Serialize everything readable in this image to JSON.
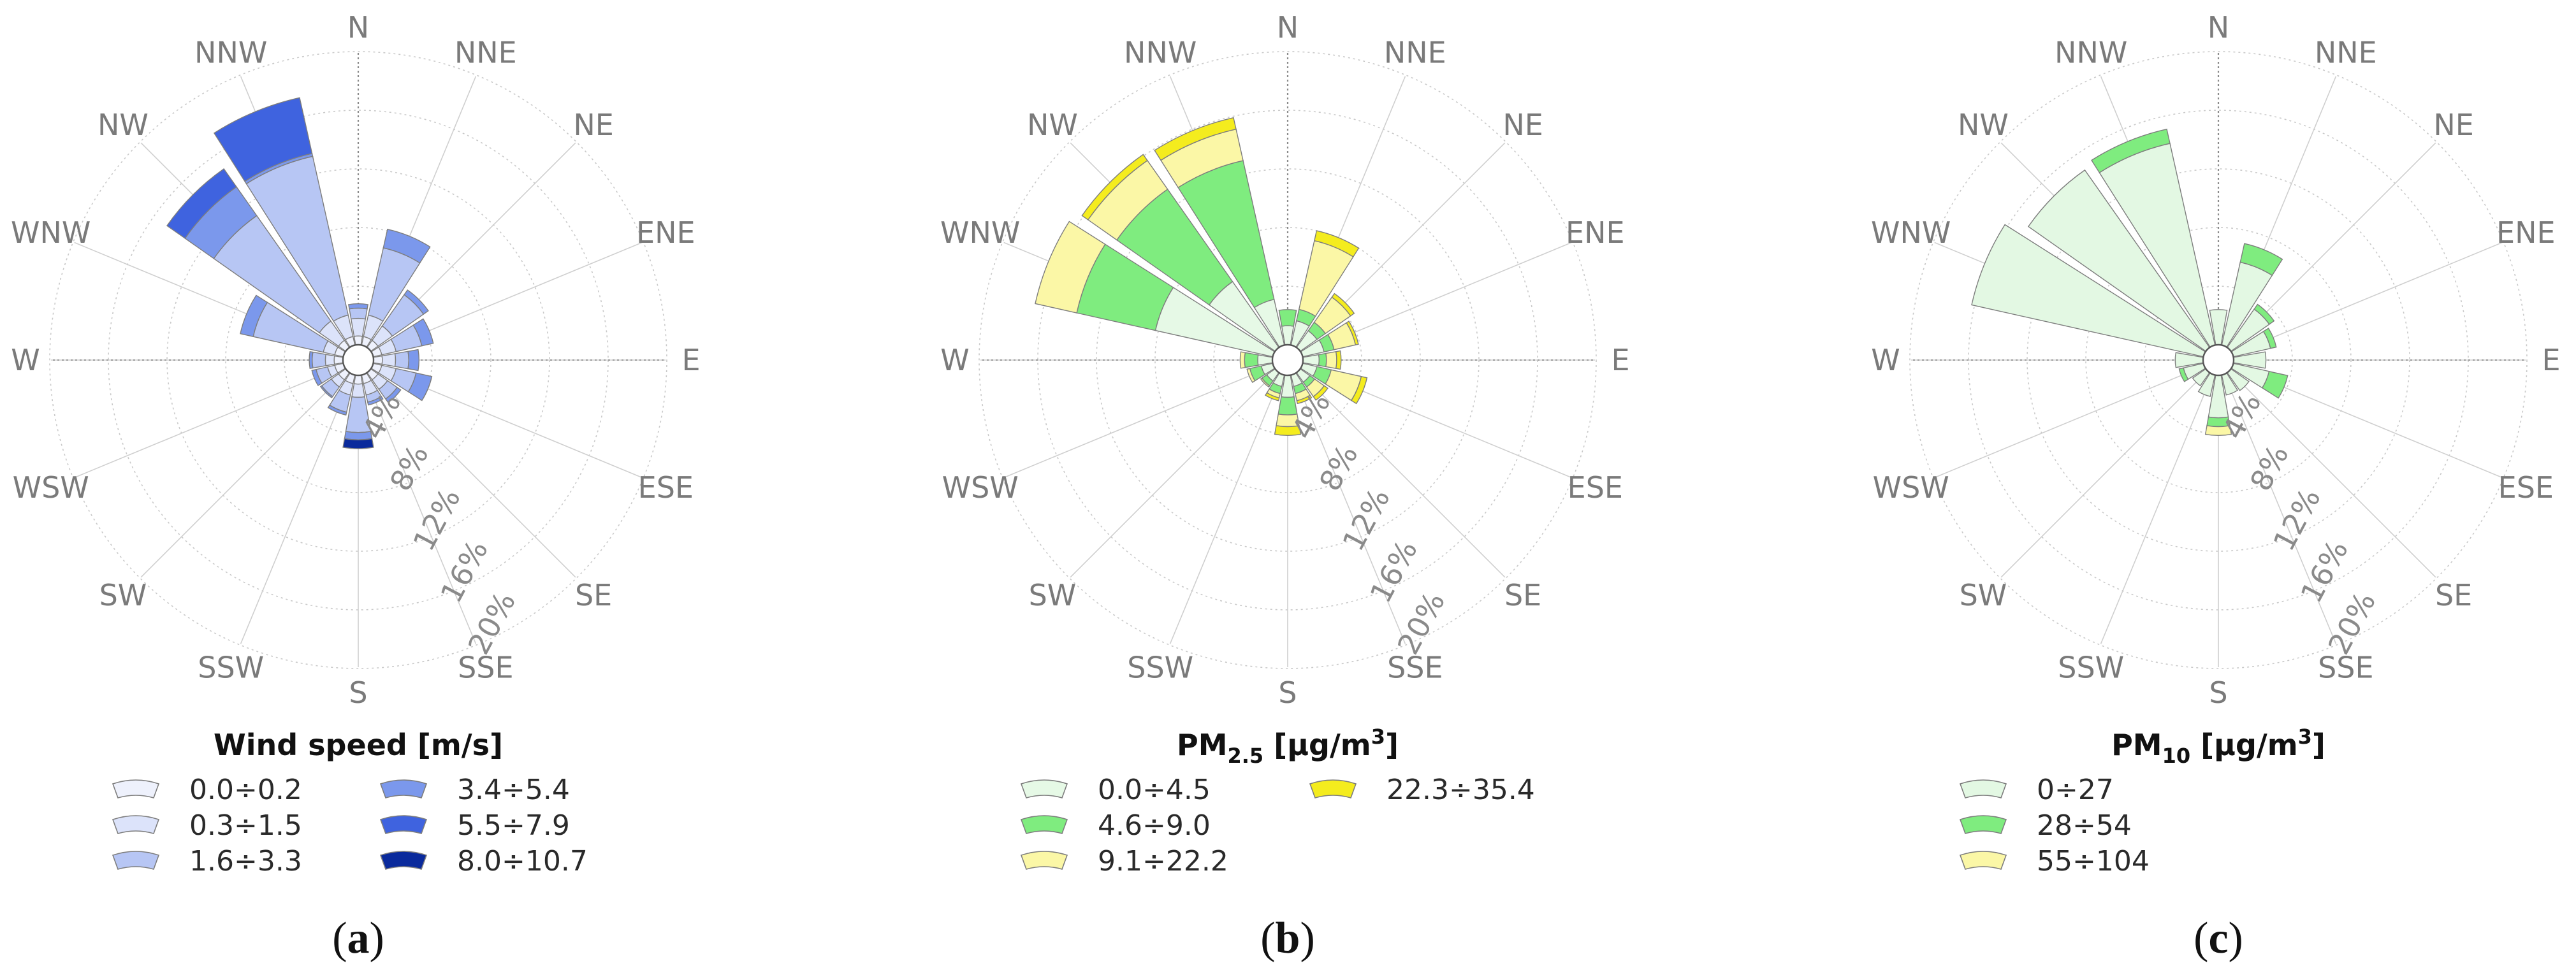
{
  "directions": [
    "N",
    "NNE",
    "NE",
    "ENE",
    "E",
    "ESE",
    "SE",
    "SSE",
    "S",
    "SSW",
    "SW",
    "WSW",
    "W",
    "WNW",
    "NW",
    "NNW"
  ],
  "ring_labels": [
    "4%",
    "8%",
    "12%",
    "16%",
    "20%"
  ],
  "chart_data": [
    {
      "type": "polar-bar (wind rose)",
      "panel": "(a)",
      "caption_letter": "a",
      "legend_title": "Wind speed [m/s]",
      "radial_unit": "% frequency",
      "rlim": [
        0,
        20
      ],
      "ring_ticks": [
        4,
        8,
        12,
        16,
        20
      ],
      "directions": [
        "N",
        "NNE",
        "NE",
        "ENE",
        "E",
        "ESE",
        "SE",
        "SSE",
        "S",
        "SSW",
        "SW",
        "WSW",
        "W",
        "WNW",
        "NW",
        "NNW"
      ],
      "series": [
        {
          "name": "0.0÷0.2",
          "color": "#eef1fc",
          "values": [
            0.6,
            0.6,
            0.6,
            0.6,
            0.6,
            0.6,
            0.6,
            0.6,
            0.6,
            0.6,
            0.6,
            0.6,
            0.6,
            0.6,
            0.6,
            0.6
          ]
        },
        {
          "name": "0.3÷1.5",
          "color": "#dce3fa",
          "values": [
            1.2,
            1.5,
            1.2,
            1.0,
            0.9,
            1.0,
            0.8,
            0.8,
            0.9,
            0.8,
            0.6,
            0.5,
            0.6,
            0.8,
            1.6,
            1.5
          ]
        },
        {
          "name": "1.6÷3.3",
          "color": "#b7c6f4",
          "values": [
            0.7,
            4.7,
            2.6,
            1.8,
            0.9,
            1.4,
            0.8,
            0.5,
            2.4,
            1.2,
            0.8,
            0.8,
            0.9,
            4.9,
            8.8,
            11.1
          ]
        },
        {
          "name": "3.4÷5.4",
          "color": "#7b98ec",
          "values": [
            0.3,
            1.3,
            0.4,
            0.8,
            0.7,
            1.1,
            0.3,
            0.2,
            0.5,
            0.2,
            0.1,
            0.3,
            0.2,
            0.9,
            2.4,
            0.2
          ]
        },
        {
          "name": "5.5÷7.9",
          "color": "#3f63df",
          "values": [
            0.0,
            0.0,
            0.0,
            0.0,
            0.0,
            0.0,
            0.0,
            0.0,
            0.0,
            0.0,
            0.0,
            0.0,
            0.0,
            0.0,
            1.5,
            3.9
          ]
        },
        {
          "name": "8.0÷10.7",
          "color": "#0a2a9c",
          "values": [
            0.0,
            0.0,
            0.0,
            0.0,
            0.0,
            0.0,
            0.0,
            0.0,
            0.6,
            0.0,
            0.0,
            0.0,
            0.0,
            0.0,
            0.0,
            0.0
          ]
        }
      ]
    },
    {
      "type": "polar-bar (wind rose)",
      "panel": "(b)",
      "caption_letter": "b",
      "legend_title": "PM",
      "legend_title_sub": "2.5",
      "legend_title_unit_pre": " [µg/m",
      "legend_title_unit_sup": "3",
      "legend_title_unit_post": "]",
      "radial_unit": "% frequency",
      "rlim": [
        0,
        20
      ],
      "ring_ticks": [
        4,
        8,
        12,
        16,
        20
      ],
      "directions": [
        "N",
        "NNE",
        "NE",
        "ENE",
        "E",
        "ESE",
        "SE",
        "SSE",
        "S",
        "SSW",
        "SW",
        "WSW",
        "W",
        "WNW",
        "NW",
        "NNW"
      ],
      "series": [
        {
          "name": "0.0÷4.5",
          "color": "#e6f9e6",
          "values": [
            1.3,
            1.7,
            1.4,
            1.5,
            1.1,
            1.0,
            0.8,
            0.8,
            1.5,
            0.8,
            0.7,
            0.8,
            1.0,
            8.2,
            5.5,
            3.2
          ]
        },
        {
          "name": "4.6÷9.0",
          "color": "#7fec7f",
          "values": [
            1.1,
            0.8,
            0.7,
            0.7,
            0.5,
            1.0,
            0.4,
            0.5,
            1.2,
            0.5,
            0.4,
            0.8,
            0.9,
            5.5,
            7.7,
            9.7
          ]
        },
        {
          "name": "9.1÷22.2",
          "color": "#fbf7a6",
          "values": [
            0.0,
            4.8,
            2.1,
            1.5,
            0.7,
            2.1,
            0.8,
            0.5,
            0.8,
            0.3,
            0.1,
            0.2,
            0.3,
            2.9,
            2.4,
            2.2
          ]
        },
        {
          "name": "22.3÷35.4",
          "color": "#f4ec1e",
          "values": [
            0.0,
            0.7,
            0.3,
            0.2,
            0.3,
            0.4,
            0.3,
            0.2,
            0.6,
            0.2,
            0.0,
            0.0,
            0.0,
            0.0,
            0.5,
            0.8
          ]
        }
      ]
    },
    {
      "type": "polar-bar (wind rose)",
      "panel": "(c)",
      "caption_letter": "c",
      "legend_title": "PM",
      "legend_title_sub": "10",
      "legend_title_unit_pre": " [µg/m",
      "legend_title_unit_sup": "3",
      "legend_title_unit_post": "]",
      "radial_unit": "% frequency",
      "rlim": [
        0,
        20
      ],
      "ring_ticks": [
        4,
        8,
        12,
        16,
        20
      ],
      "directions": [
        "N",
        "NNE",
        "NE",
        "ENE",
        "E",
        "ESE",
        "SE",
        "SSE",
        "S",
        "SSW",
        "SW",
        "WSW",
        "W",
        "WNW",
        "NW",
        "NNW"
      ],
      "series": [
        {
          "name": "0÷27",
          "color": "#e3f8e3",
          "values": [
            2.4,
            5.8,
            3.2,
            2.6,
            2.2,
            2.5,
            1.5,
            1.4,
            2.9,
            1.5,
            1.1,
            1.4,
            1.9,
            16.2,
            14.8,
            14.1
          ]
        },
        {
          "name": "28÷54",
          "color": "#7fec7f",
          "values": [
            0.0,
            1.3,
            0.4,
            0.4,
            0.0,
            1.3,
            0.0,
            0.0,
            0.6,
            0.0,
            0.0,
            0.3,
            0.0,
            0.0,
            0.0,
            1.0
          ]
        },
        {
          "name": "55÷104",
          "color": "#fbf7a6",
          "values": [
            0.0,
            0.0,
            0.0,
            0.0,
            0.0,
            0.0,
            0.0,
            0.0,
            0.6,
            0.0,
            0.0,
            0.0,
            0.0,
            0.0,
            0.0,
            0.0
          ]
        }
      ]
    }
  ]
}
